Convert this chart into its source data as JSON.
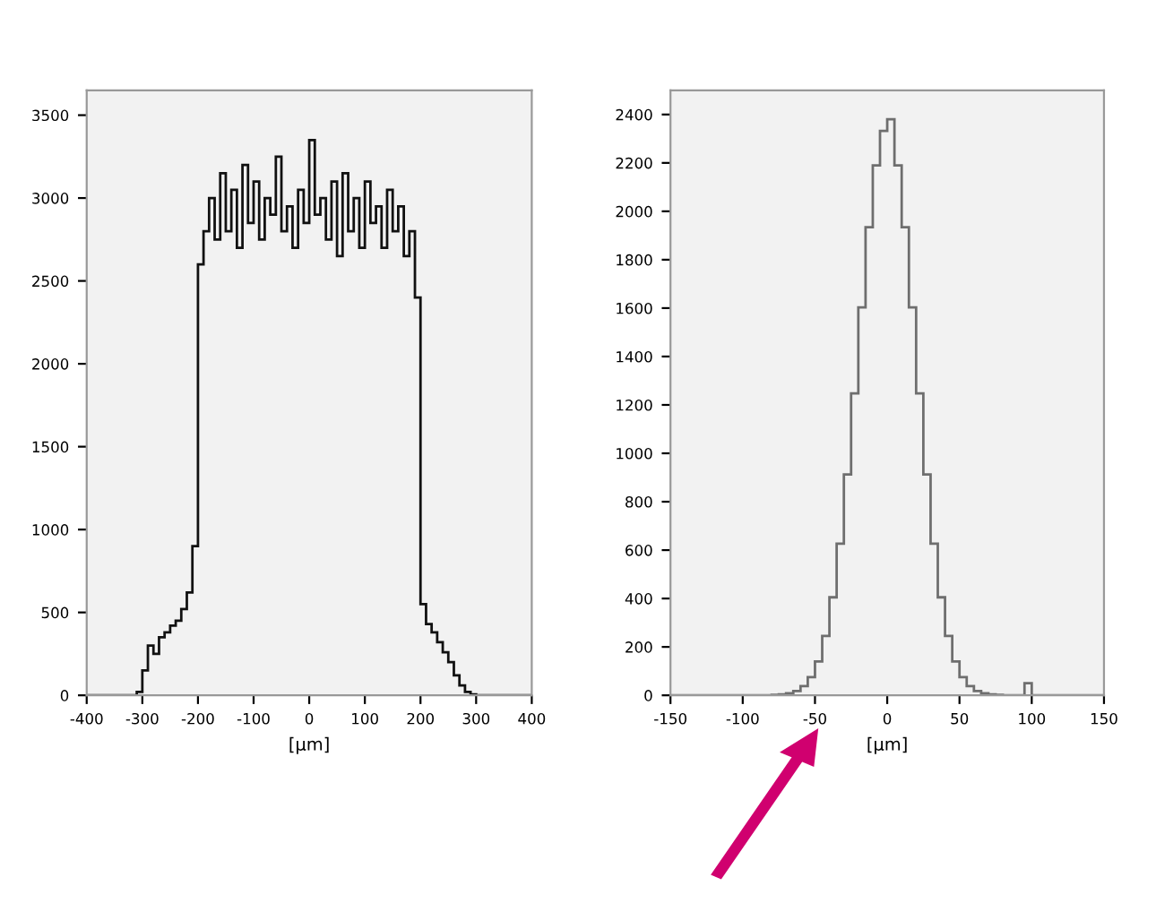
{
  "chart_data": [
    {
      "type": "histogram",
      "xlabel": "[μm]",
      "color": "#111111",
      "bins": [
        -400,
        -390,
        -380,
        -370,
        -360,
        -350,
        -340,
        -330,
        -320,
        -310,
        -300,
        -290,
        -280,
        -270,
        -260,
        -250,
        -240,
        -230,
        -220,
        -210,
        -200,
        -190,
        -180,
        -170,
        -160,
        -150,
        -140,
        -130,
        -120,
        -110,
        -100,
        -90,
        -80,
        -70,
        -60,
        -50,
        -40,
        -30,
        -20,
        -10,
        0,
        10,
        20,
        30,
        40,
        50,
        60,
        70,
        80,
        90,
        100,
        110,
        120,
        130,
        140,
        150,
        160,
        170,
        180,
        190,
        200,
        210,
        220,
        230,
        240,
        250,
        260,
        270,
        280,
        290,
        300,
        310,
        320,
        330,
        340,
        350,
        360,
        370,
        380,
        390,
        400
      ],
      "values": [
        0,
        0,
        0,
        0,
        0,
        0,
        0,
        0,
        0,
        20,
        150,
        300,
        250,
        350,
        380,
        420,
        450,
        520,
        620,
        900,
        2600,
        2800,
        3000,
        2750,
        3150,
        2800,
        3050,
        2700,
        3200,
        2850,
        3100,
        2750,
        3000,
        2900,
        3250,
        2800,
        2950,
        2700,
        3050,
        2850,
        3350,
        2900,
        3000,
        2750,
        3100,
        2650,
        3150,
        2800,
        3000,
        2700,
        3100,
        2850,
        2950,
        2700,
        3050,
        2800,
        2950,
        2650,
        2800,
        2400,
        550,
        430,
        380,
        320,
        260,
        200,
        120,
        60,
        20,
        5,
        0,
        0,
        0,
        0,
        0,
        0,
        0,
        0,
        0,
        0
      ],
      "xlim": [
        -400,
        400
      ],
      "xticks": [
        -400,
        -300,
        -200,
        -100,
        0,
        100,
        200,
        300,
        400
      ],
      "ylim": [
        0,
        3650
      ],
      "yticks": [
        0,
        500,
        1000,
        1500,
        2000,
        2500,
        3000,
        3500
      ],
      "grid": false
    },
    {
      "type": "histogram",
      "xlabel": "[μm]",
      "color": "#6e6e6e",
      "bins": [
        -150,
        -145,
        -140,
        -135,
        -130,
        -125,
        -120,
        -115,
        -110,
        -105,
        -100,
        -95,
        -90,
        -85,
        -80,
        -75,
        -70,
        -65,
        -60,
        -55,
        -50,
        -45,
        -40,
        -35,
        -30,
        -25,
        -20,
        -15,
        -10,
        -5,
        0,
        5,
        10,
        15,
        20,
        25,
        30,
        35,
        40,
        45,
        50,
        55,
        60,
        65,
        70,
        75,
        80,
        85,
        90,
        95,
        100,
        105,
        110,
        115,
        120,
        125,
        130,
        135,
        140,
        145,
        150
      ],
      "values": [
        0,
        0,
        0,
        0,
        0,
        0,
        0,
        0,
        0,
        0,
        0,
        0,
        0,
        0,
        2,
        4,
        8,
        18,
        38,
        75,
        140,
        245,
        405,
        627,
        913,
        1248,
        1603,
        1934,
        2190,
        2332,
        2380,
        2190,
        1934,
        1603,
        1248,
        913,
        627,
        405,
        245,
        140,
        75,
        38,
        18,
        8,
        4,
        2,
        0,
        0,
        0,
        50,
        0,
        0,
        0,
        0,
        0,
        0,
        0,
        0,
        0,
        0
      ],
      "xlim": [
        -150,
        150
      ],
      "xticks": [
        -150,
        -100,
        -50,
        0,
        50,
        100,
        150
      ],
      "ylim": [
        0,
        2500
      ],
      "yticks": [
        0,
        200,
        400,
        600,
        800,
        1000,
        1200,
        1400,
        1600,
        1800,
        2000,
        2200,
        2400
      ],
      "grid": false
    }
  ]
}
